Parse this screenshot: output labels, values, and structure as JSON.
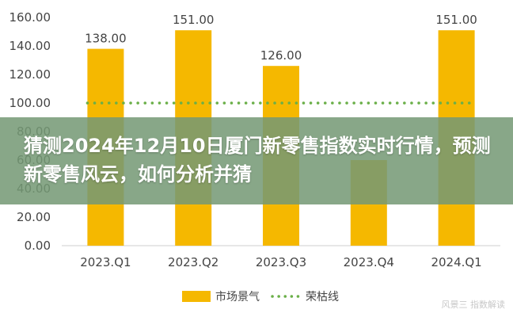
{
  "chart_data": {
    "type": "bar",
    "categories": [
      "2023.Q1",
      "2023.Q2",
      "2023.Q3",
      "2023.Q4",
      "2024.Q1"
    ],
    "series": [
      {
        "name": "市场景气",
        "values": [
          138,
          151,
          126,
          60,
          151
        ],
        "data_labels": [
          "138.00",
          "151.00",
          "126.00",
          "",
          "151.00"
        ],
        "color": "#F5B800"
      },
      {
        "name": "荣枯线",
        "type": "line",
        "values": [
          100,
          100,
          100,
          100,
          100
        ],
        "style": "dotted",
        "color": "#6AAF48"
      }
    ],
    "ylim": [
      0,
      160
    ],
    "yticks": [
      "0.00",
      "20.00",
      "40.00",
      "60.00",
      "80.00",
      "100.00",
      "120.00",
      "140.00",
      "160.00"
    ],
    "legend_position": "bottom",
    "grid": false
  },
  "overlay": {
    "title": "猜测2024年12月10日厦门新零售指数实时行情，预测新零售风云，如何分析并猜"
  },
  "watermark": "风景三  指数解读"
}
